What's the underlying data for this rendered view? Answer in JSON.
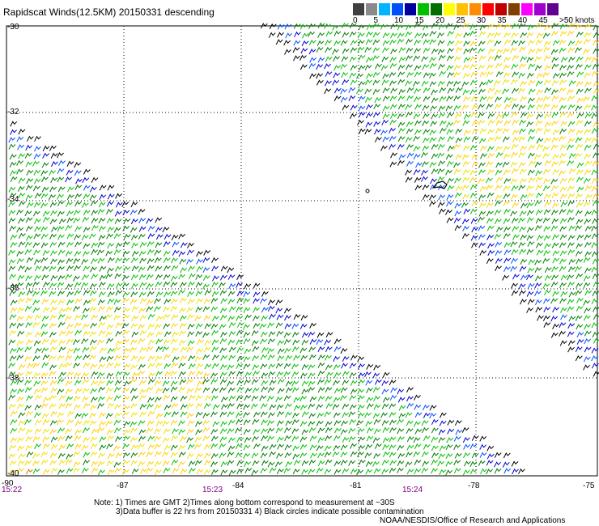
{
  "title": "Rapidscat Winds(12.5KM) 20150331 descending",
  "legend": {
    "labels": [
      "0",
      "5",
      "10",
      "15",
      "20",
      "25",
      "30",
      "35",
      "40",
      "45",
      ">50 knots"
    ],
    "colors": [
      "#404040",
      "#8a8a8a",
      "#00b4ff",
      "#0050ff",
      "#0000a0",
      "#00c000",
      "#007000",
      "#ffff00",
      "#ffc000",
      "#ff8c00",
      "#ff0000",
      "#c00000",
      "#804000",
      "#ff00ff",
      "#a000d0",
      "#600090"
    ]
  },
  "map": {
    "lat_labels": [
      "-30",
      "-32",
      "-34",
      "-36",
      "-38",
      "-40"
    ],
    "lon_labels": [
      "-90",
      "-87",
      "-84",
      "-81",
      "-78",
      "-75"
    ],
    "time_labels": [
      "15:22",
      "15:23",
      "15:24"
    ]
  },
  "notes": {
    "line1": "Note: 1) Times are GMT 2)Times along bottom correspond to measurement at ~30S",
    "line2": "3)Data buffer is 22 hrs from 20150331 4) Black circles indicate possible contamination",
    "line3": "NOAA/NESDIS/Office of Research and Applications"
  }
}
